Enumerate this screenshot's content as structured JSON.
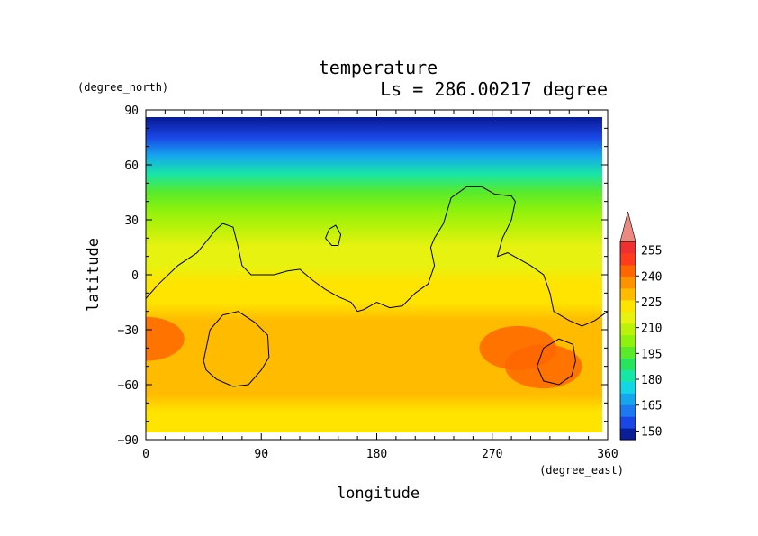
{
  "chart_data": {
    "type": "heatmap",
    "title": "temperature",
    "subtitle": "Ls = 286.00217 degree",
    "xlabel": "longitude",
    "ylabel": "latitude",
    "x_unit": "(degree_east)",
    "y_unit": "(degree_north)",
    "xlim": [
      0,
      360
    ],
    "ylim": [
      -90,
      90
    ],
    "x_ticks": [
      "0",
      "90",
      "180",
      "270",
      "360"
    ],
    "y_ticks": [
      "90",
      "60",
      "30",
      "0",
      "−30",
      "−60",
      "−90"
    ],
    "colorbar": {
      "levels": [
        "150",
        "165",
        "180",
        "195",
        "210",
        "225",
        "240",
        "255"
      ],
      "min": 145,
      "max": 260,
      "colors": [
        "#0a1e9a",
        "#1a46e6",
        "#1e78f0",
        "#15a6ee",
        "#12d6e6",
        "#18e6a6",
        "#28e35e",
        "#59ea2a",
        "#8ff20c",
        "#bcf20a",
        "#e8f210",
        "#ffe400",
        "#ffbb00",
        "#ff9200",
        "#ff6600",
        "#ff3b1e",
        "#f03030",
        "#ec8a82"
      ],
      "extend": "max"
    },
    "temperature_by_latitude": {
      "latitudes": [
        85,
        75,
        65,
        55,
        45,
        35,
        25,
        15,
        5,
        -5,
        -15,
        -25,
        -35,
        -45,
        -55,
        -65,
        -75,
        -85
      ],
      "values": [
        150,
        153,
        168,
        182,
        193,
        202,
        207,
        210,
        213,
        216,
        219,
        224,
        226,
        227,
        226,
        222,
        218,
        216
      ]
    },
    "warm_regions": [
      {
        "lon": 0,
        "lat": -35,
        "value": 235
      },
      {
        "lon": 290,
        "lat": -40,
        "value": 235
      },
      {
        "lon": 310,
        "lat": -50,
        "value": 235
      }
    ],
    "contour_overlays": [
      {
        "name": "topography-contour",
        "points": [
          [
            0,
            -13
          ],
          [
            10,
            -5
          ],
          [
            25,
            5
          ],
          [
            40,
            12
          ],
          [
            55,
            25
          ],
          [
            60,
            28
          ],
          [
            68,
            26
          ],
          [
            72,
            15
          ],
          [
            75,
            5
          ],
          [
            82,
            0
          ],
          [
            100,
            0
          ],
          [
            110,
            2
          ],
          [
            120,
            3
          ],
          [
            130,
            -3
          ],
          [
            140,
            -8
          ],
          [
            150,
            -12
          ],
          [
            160,
            -15
          ],
          [
            165,
            -20
          ],
          [
            170,
            -19
          ],
          [
            180,
            -15
          ],
          [
            190,
            -18
          ],
          [
            200,
            -17
          ],
          [
            210,
            -10
          ],
          [
            220,
            -5
          ],
          [
            225,
            5
          ],
          [
            222,
            15
          ],
          [
            225,
            20
          ],
          [
            232,
            28
          ],
          [
            238,
            42
          ],
          [
            250,
            48
          ],
          [
            262,
            48
          ],
          [
            272,
            44
          ],
          [
            285,
            43
          ],
          [
            288,
            40
          ],
          [
            285,
            30
          ],
          [
            278,
            20
          ],
          [
            274,
            10
          ],
          [
            282,
            12
          ],
          [
            300,
            5
          ],
          [
            310,
            0
          ],
          [
            315,
            -10
          ],
          [
            318,
            -20
          ],
          [
            330,
            -25
          ],
          [
            340,
            -28
          ],
          [
            350,
            -25
          ],
          [
            360,
            -20
          ]
        ]
      },
      {
        "name": "small-contour",
        "points": [
          [
            140,
            20
          ],
          [
            143,
            25
          ],
          [
            148,
            27
          ],
          [
            152,
            22
          ],
          [
            150,
            16
          ],
          [
            145,
            16
          ],
          [
            140,
            20
          ]
        ]
      },
      {
        "name": "southwest-contour",
        "points": [
          [
            45,
            -47
          ],
          [
            50,
            -30
          ],
          [
            60,
            -22
          ],
          [
            72,
            -20
          ],
          [
            85,
            -26
          ],
          [
            95,
            -33
          ],
          [
            96,
            -45
          ],
          [
            90,
            -52
          ],
          [
            80,
            -60
          ],
          [
            68,
            -61
          ],
          [
            55,
            -57
          ],
          [
            47,
            -52
          ],
          [
            45,
            -47
          ]
        ]
      },
      {
        "name": "southeast-contour",
        "points": [
          [
            305,
            -50
          ],
          [
            310,
            -40
          ],
          [
            322,
            -35
          ],
          [
            333,
            -38
          ],
          [
            335,
            -47
          ],
          [
            332,
            -55
          ],
          [
            322,
            -60
          ],
          [
            310,
            -58
          ],
          [
            305,
            -50
          ]
        ]
      }
    ]
  }
}
